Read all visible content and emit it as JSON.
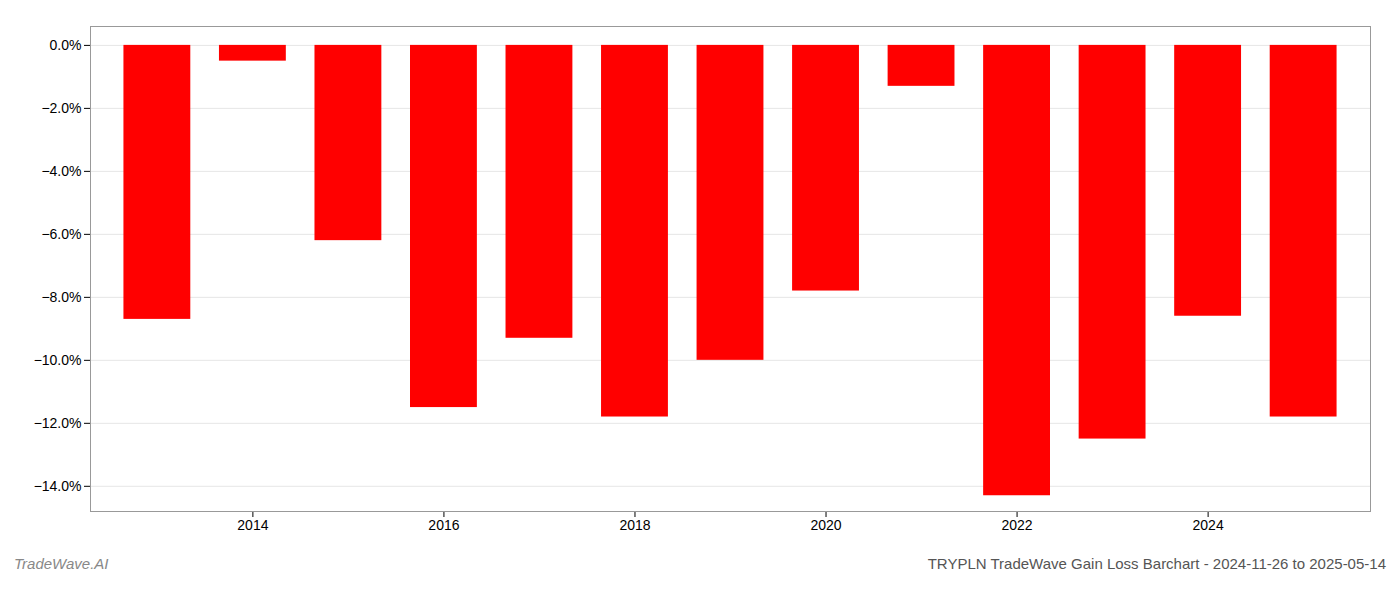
{
  "chart_data": {
    "type": "bar",
    "title": "TRYPLN TradeWave Gain Loss Barchart - 2024-11-26 to 2025-05-14",
    "annotations": [
      "TradeWave.AI"
    ],
    "x": [
      2013,
      2014,
      2015,
      2016,
      2017,
      2018,
      2019,
      2020,
      2021,
      2022,
      2023,
      2024,
      2025
    ],
    "values": [
      -8.7,
      -0.5,
      -6.2,
      -11.5,
      -9.3,
      -11.8,
      -10.0,
      -7.8,
      -1.3,
      -14.3,
      -12.5,
      -8.6,
      -11.8
    ],
    "color": "#ff0000",
    "xlim": [
      2012.3,
      2025.7
    ],
    "xticks": [
      2014,
      2016,
      2018,
      2020,
      2022,
      2024
    ],
    "ylim": [
      -14.8,
      0.6
    ],
    "yticks": [
      {
        "value": 0.0,
        "label": "0.0%"
      },
      {
        "value": -2.0,
        "label": "−2.0%"
      },
      {
        "value": -4.0,
        "label": "−4.0%"
      },
      {
        "value": -6.0,
        "label": "−6.0%"
      },
      {
        "value": -8.0,
        "label": "−8.0%"
      },
      {
        "value": -10.0,
        "label": "−10.0%"
      },
      {
        "value": -12.0,
        "label": "−12.0%"
      },
      {
        "value": -14.0,
        "label": "−14.0%"
      }
    ],
    "grid": true
  }
}
